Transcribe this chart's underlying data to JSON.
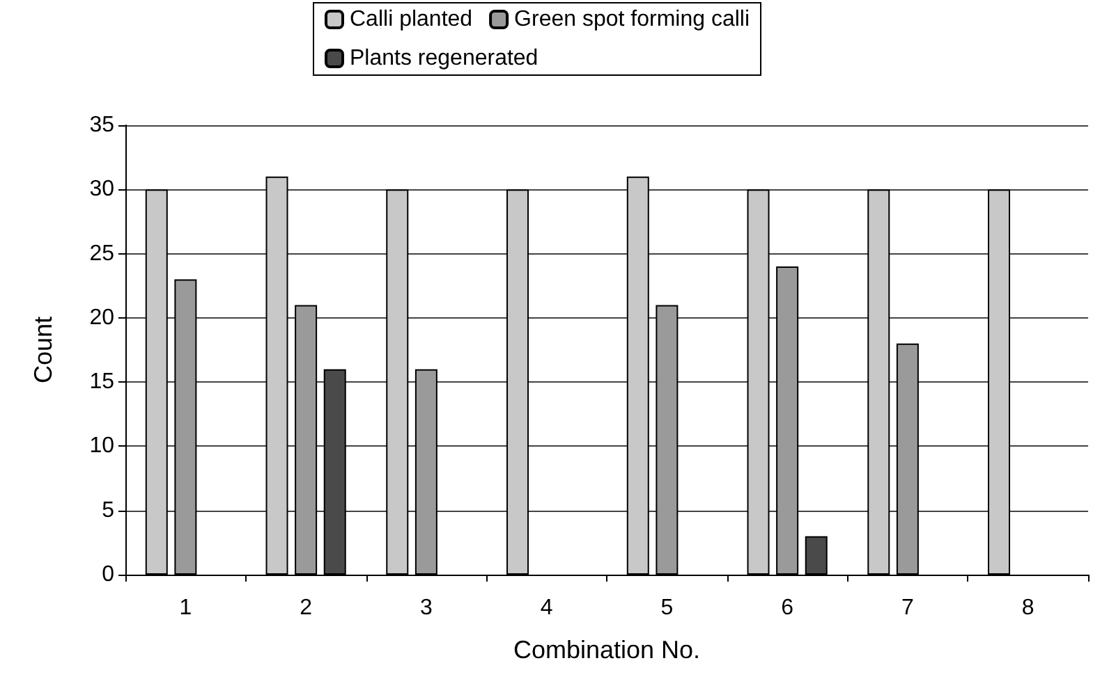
{
  "chart_data": {
    "type": "bar",
    "xlabel": "Combination No.",
    "ylabel": "Count",
    "categories": [
      "1",
      "2",
      "3",
      "4",
      "5",
      "6",
      "7",
      "8"
    ],
    "series": [
      {
        "name": "Calli planted",
        "color": "#c8c8c8",
        "values": [
          30,
          31,
          30,
          30,
          31,
          30,
          30,
          30
        ]
      },
      {
        "name": "Green spot forming calli",
        "color": "#9a9a9a",
        "values": [
          23,
          21,
          16,
          0,
          21,
          24,
          18,
          0
        ]
      },
      {
        "name": "Plants regenerated",
        "color": "#4a4a4a",
        "values": [
          0,
          16,
          0,
          0,
          0,
          3,
          0,
          0
        ]
      }
    ],
    "ylim": [
      0,
      35
    ],
    "yticks": [
      0,
      5,
      10,
      15,
      20,
      25,
      30,
      35
    ],
    "grid": "y",
    "legend": "top"
  }
}
